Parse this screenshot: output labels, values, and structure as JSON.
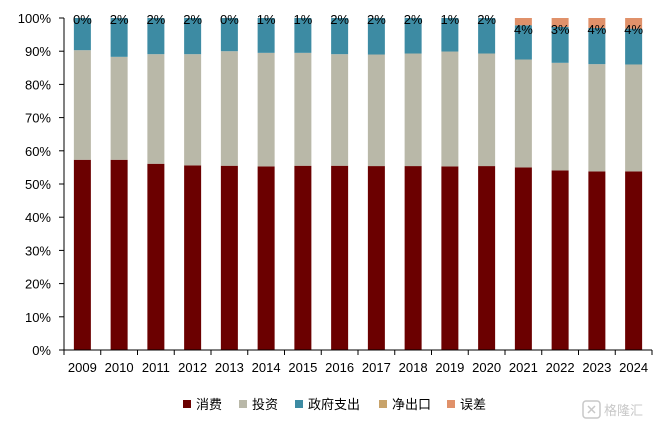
{
  "chart_data": {
    "type": "bar",
    "stacked": true,
    "categories": [
      "2009",
      "2010",
      "2011",
      "2012",
      "2013",
      "2014",
      "2015",
      "2016",
      "2017",
      "2018",
      "2019",
      "2020",
      "2021",
      "2022",
      "2023",
      "2024"
    ],
    "series": [
      {
        "name": "消费",
        "color": "#6b0000",
        "values": [
          57.3,
          57.3,
          56.1,
          55.6,
          55.5,
          55.3,
          55.5,
          55.5,
          55.4,
          55.4,
          55.3,
          55.4,
          55.0,
          54.1,
          53.8,
          53.8
        ]
      },
      {
        "name": "投资",
        "color": "#b9b8a8",
        "values": [
          33.0,
          31.0,
          33.0,
          33.5,
          34.5,
          34.2,
          34.0,
          33.6,
          33.6,
          33.9,
          34.6,
          33.9,
          32.5,
          32.4,
          32.3,
          32.2
        ]
      },
      {
        "name": "政府支出",
        "color": "#3d8ba3",
        "values": [
          9.7,
          11.7,
          10.9,
          10.9,
          10.0,
          10.5,
          10.5,
          10.9,
          11.0,
          10.7,
          10.1,
          10.7,
          10.3,
          10.8,
          10.9,
          10.8
        ]
      },
      {
        "name": "净出口",
        "color": "#c8a36a",
        "values": [
          0,
          0,
          0,
          0,
          0,
          0,
          0,
          0,
          0,
          0,
          0,
          0,
          0,
          0,
          0,
          0
        ]
      },
      {
        "name": "误差",
        "color": "#e0916a",
        "values": [
          0,
          0,
          0,
          0,
          0,
          0,
          0,
          0,
          0,
          0,
          0,
          0,
          2.2,
          2.7,
          3.0,
          3.2
        ]
      }
    ],
    "data_labels": [
      "0%",
      "2%",
      "2%",
      "2%",
      "0%",
      "1%",
      "1%",
      "2%",
      "2%",
      "2%",
      "1%",
      "2%",
      "4%",
      "3%",
      "4%",
      "4%"
    ],
    "y_ticks": [
      "0%",
      "10%",
      "20%",
      "30%",
      "40%",
      "50%",
      "60%",
      "70%",
      "80%",
      "90%",
      "100%"
    ],
    "ylim": [
      0,
      100
    ],
    "legend_position": "bottom",
    "grid": false
  },
  "watermark": "格隆汇"
}
